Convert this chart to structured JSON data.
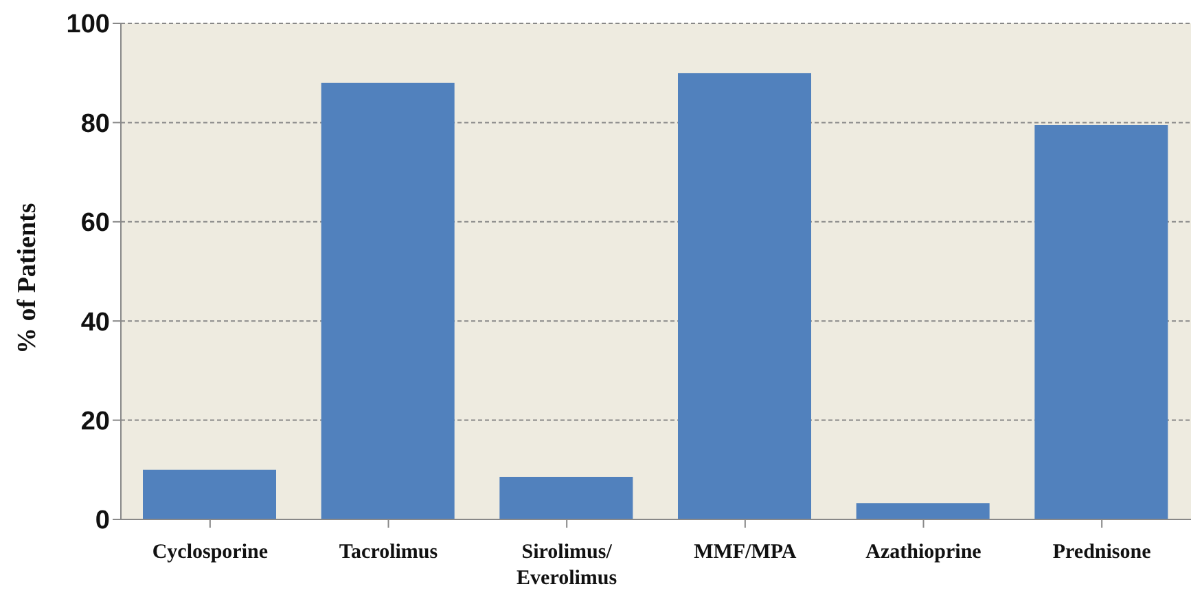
{
  "chart_data": {
    "type": "bar",
    "ylabel": "% of Patients",
    "categories": [
      "Cyclosporine",
      "Tacrolimus",
      "Sirolimus/ Everolimus",
      "MMF/MPA",
      "Azathioprine",
      "Prednisone"
    ],
    "values": [
      10,
      88,
      8.6,
      90,
      3.3,
      79.5
    ],
    "color": "#5181bd",
    "ylim": [
      0,
      100
    ],
    "yticks": [
      0,
      20,
      40,
      60,
      80,
      100
    ],
    "grid": "y"
  }
}
